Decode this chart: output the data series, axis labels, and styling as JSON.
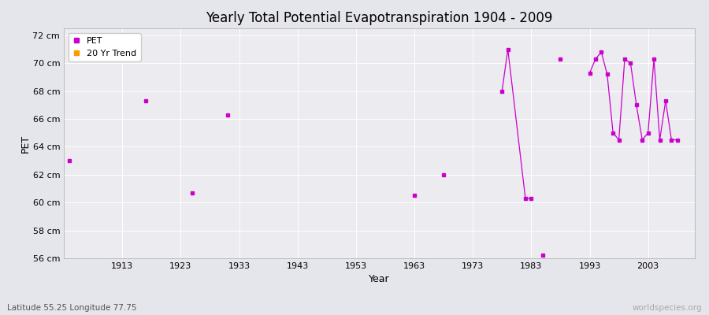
{
  "title": "Yearly Total Potential Evapotranspiration 1904 - 2009",
  "xlabel": "Year",
  "ylabel": "PET",
  "subtitle": "Latitude 55.25 Longitude 77.75",
  "watermark": "worldspecies.org",
  "background_color": "#e5e5ec",
  "plot_bg_color": "#ebebf0",
  "grid_color": "#ffffff",
  "ylim": [
    56,
    72.5
  ],
  "yticks": [
    56,
    58,
    60,
    62,
    64,
    66,
    68,
    70,
    72
  ],
  "ytick_labels": [
    "56 cm",
    "58 cm",
    "60 cm",
    "62 cm",
    "64 cm",
    "66 cm",
    "68 cm",
    "70 cm",
    "72 cm"
  ],
  "xlim": [
    1903,
    2011
  ],
  "xticks": [
    1913,
    1923,
    1933,
    1943,
    1953,
    1963,
    1973,
    1983,
    1993,
    2003
  ],
  "pet_color": "#cc00cc",
  "trend_color": "#ff9900",
  "isolated_years": [
    1904,
    1917,
    1925,
    1931,
    1963,
    1968,
    1985,
    1988
  ],
  "isolated_values": [
    63.0,
    67.3,
    60.7,
    66.3,
    60.5,
    62.0,
    56.2,
    70.3
  ],
  "seg1_years": [
    1978,
    1979,
    1982,
    1983
  ],
  "seg1_values": [
    68.0,
    71.0,
    60.3,
    60.3
  ],
  "seg2_years": [
    1993,
    1994,
    1995,
    1996,
    1997,
    1998,
    1999,
    2000,
    2001,
    2002,
    2003,
    2004,
    2005,
    2006,
    2007,
    2008
  ],
  "seg2_values": [
    69.3,
    70.3,
    70.8,
    69.2,
    65.0,
    64.5,
    70.3,
    70.0,
    67.0,
    64.5,
    65.0,
    70.3,
    64.5,
    67.3,
    64.5,
    64.5
  ]
}
